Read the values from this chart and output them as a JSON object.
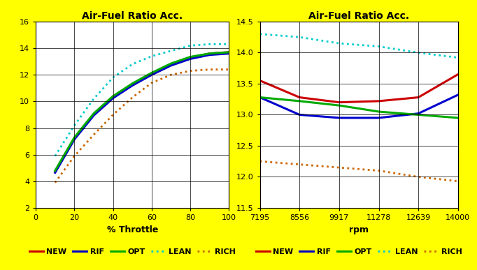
{
  "title": "Air-Fuel Ratio Acc.",
  "bg_color": "#FFFF00",
  "plot_bg": "#FFFFFF",
  "left": {
    "xlabel": "% Throttle",
    "xlim": [
      0,
      100
    ],
    "ylim": [
      2,
      16
    ],
    "xticks": [
      0,
      20,
      40,
      60,
      80,
      100
    ],
    "yticks": [
      2,
      4,
      6,
      8,
      10,
      12,
      14,
      16
    ],
    "throttle": [
      10,
      20,
      30,
      40,
      50,
      60,
      70,
      80,
      90,
      100
    ],
    "NEW": [
      4.7,
      7.2,
      9.0,
      10.3,
      11.3,
      12.1,
      12.8,
      13.3,
      13.6,
      13.7
    ],
    "RIF": [
      4.65,
      7.15,
      8.95,
      10.25,
      11.2,
      12.0,
      12.7,
      13.2,
      13.5,
      13.6
    ],
    "OPT": [
      4.8,
      7.3,
      9.1,
      10.4,
      11.35,
      12.15,
      12.85,
      13.35,
      13.6,
      13.7
    ],
    "LEAN": [
      5.9,
      8.2,
      10.2,
      11.8,
      12.8,
      13.4,
      13.8,
      14.2,
      14.3,
      14.3
    ],
    "RICH": [
      3.9,
      5.9,
      7.5,
      9.0,
      10.3,
      11.4,
      12.0,
      12.3,
      12.4,
      12.4
    ]
  },
  "right": {
    "xlabel": "rpm",
    "xlim": [
      7195,
      14000
    ],
    "ylim": [
      11.5,
      14.5
    ],
    "xticks": [
      7195,
      8556,
      9917,
      11278,
      12639,
      14000
    ],
    "yticks": [
      11.5,
      12.0,
      12.5,
      13.0,
      13.5,
      14.0,
      14.5
    ],
    "rpm": [
      7195,
      8556,
      9917,
      11278,
      12639,
      14000
    ],
    "NEW": [
      13.55,
      13.28,
      13.2,
      13.22,
      13.28,
      13.65
    ],
    "RIF": [
      13.28,
      13.0,
      12.95,
      12.95,
      13.02,
      13.32
    ],
    "OPT": [
      13.28,
      13.22,
      13.15,
      13.05,
      13.0,
      12.95
    ],
    "LEAN": [
      14.3,
      14.25,
      14.15,
      14.1,
      14.0,
      13.92
    ],
    "RICH": [
      12.25,
      12.2,
      12.15,
      12.1,
      12.0,
      11.93
    ]
  },
  "series": {
    "NEW": {
      "color": "#CC0000",
      "lw": 2.2,
      "ls": "-",
      "dotted": false
    },
    "RIF": {
      "color": "#0000CC",
      "lw": 2.2,
      "ls": "-",
      "dotted": false
    },
    "OPT": {
      "color": "#00AA00",
      "lw": 2.2,
      "ls": "-",
      "dotted": false
    },
    "LEAN": {
      "color": "#00CCCC",
      "lw": 2.0,
      "ls": ":",
      "dotted": true
    },
    "RICH": {
      "color": "#CC6600",
      "lw": 2.0,
      "ls": ":",
      "dotted": true
    }
  },
  "legend_order": [
    "NEW",
    "RIF",
    "OPT",
    "LEAN",
    "RICH"
  ],
  "font_family": "Arial",
  "title_fontsize": 10,
  "tick_fontsize": 8,
  "label_fontsize": 9,
  "legend_fontsize": 8
}
